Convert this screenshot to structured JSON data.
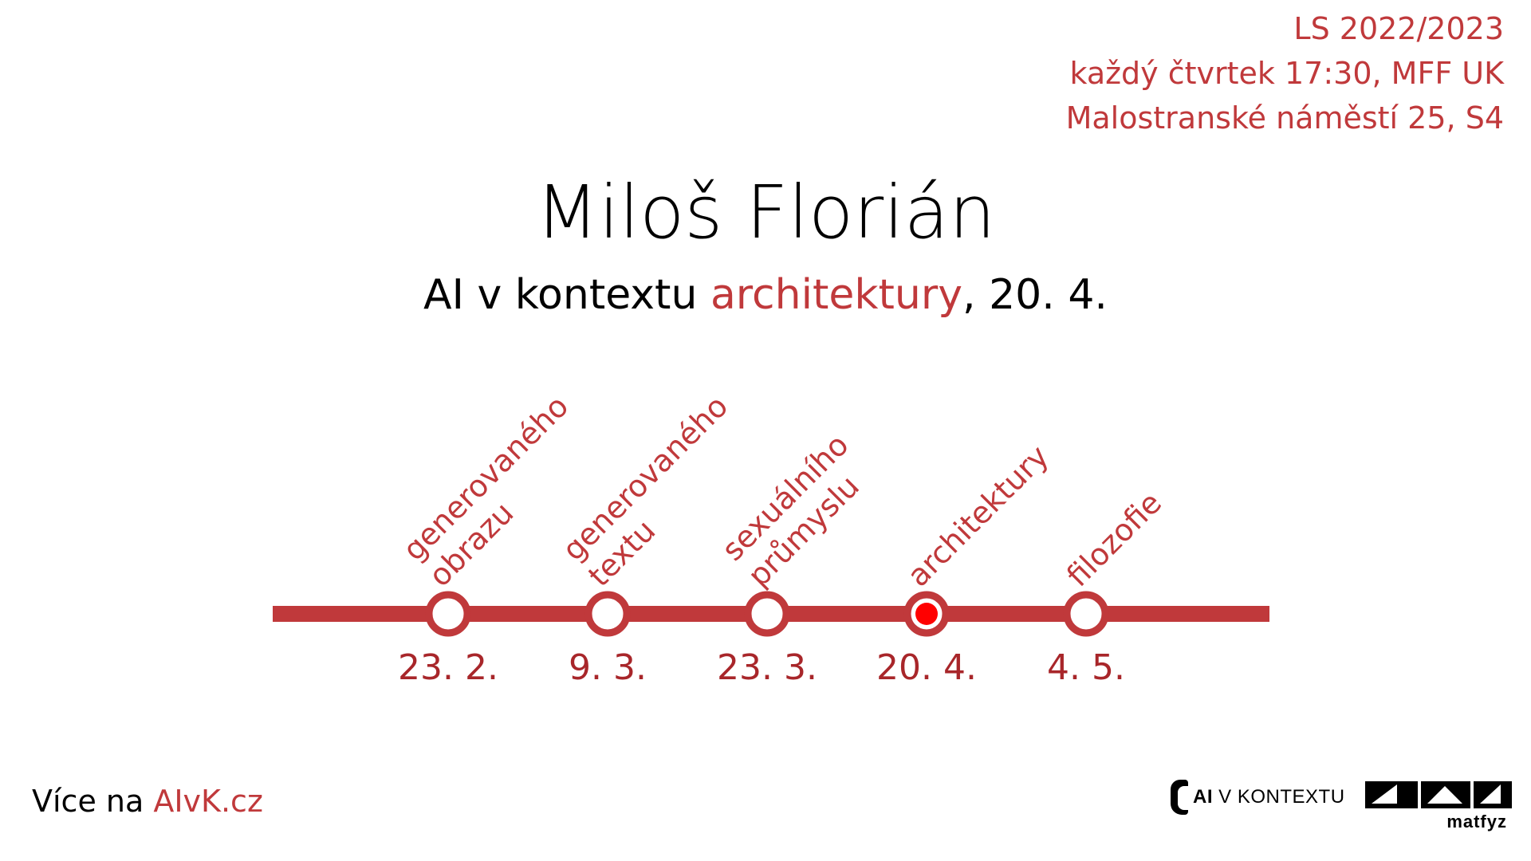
{
  "info": {
    "semester": "LS 2022/2023",
    "time": "každý čtvrtek 17:30, MFF UK",
    "place": "Malostranské náměstí 25, S4"
  },
  "speaker": "Miloš Florián",
  "topic_line": {
    "prefix": "AI v kontextu ",
    "topic": "architektury",
    "suffix": ", 20. 4."
  },
  "timeline": {
    "line_color": "#c0393b",
    "current_dot_color": "#ff0000",
    "stops": [
      {
        "label_lines": [
          "generovaného",
          "obrazu"
        ],
        "date": "23. 2.",
        "current": false
      },
      {
        "label_lines": [
          "generovaného",
          "textu"
        ],
        "date": "9. 3.",
        "current": false
      },
      {
        "label_lines": [
          "sexuálního",
          "průmyslu"
        ],
        "date": "23. 3.",
        "current": false
      },
      {
        "label_lines": [
          "architektury"
        ],
        "date": "20. 4.",
        "current": true
      },
      {
        "label_lines": [
          "filozofie"
        ],
        "date": "4. 5.",
        "current": false
      }
    ]
  },
  "footer": {
    "more_prefix": "Více na ",
    "more_link": "AIvK.cz",
    "logo_ai_bold": "AI",
    "logo_ai_rest": " V KONTEXTU",
    "logo_matfyz": "matfyz"
  }
}
